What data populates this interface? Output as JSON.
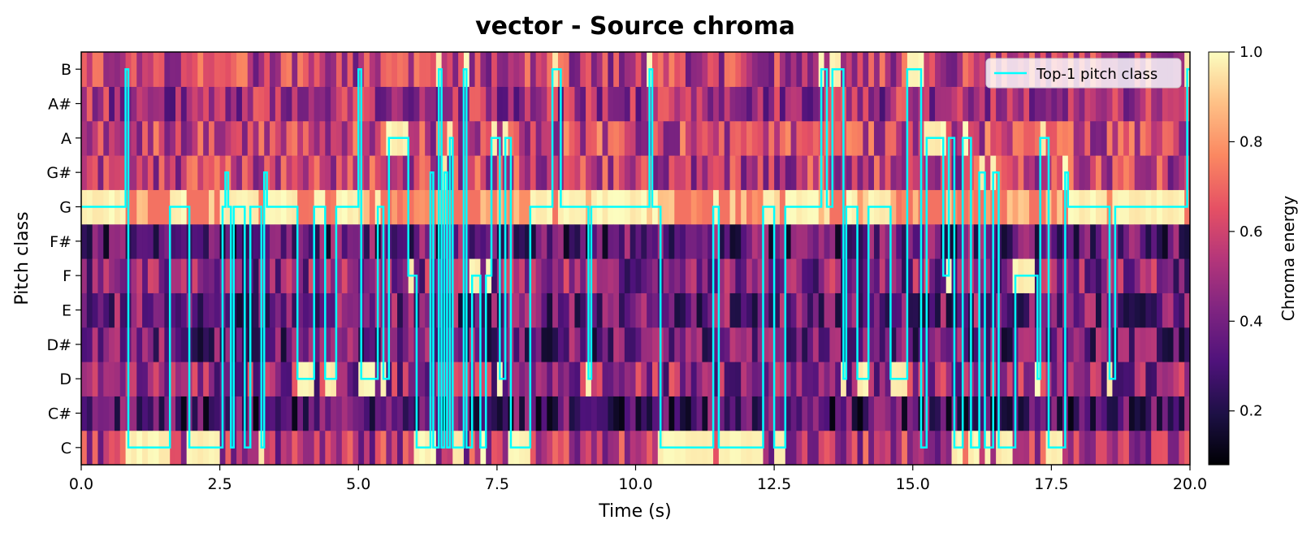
{
  "chart_data": {
    "type": "heatmap",
    "title": "vector - Source chroma",
    "xlabel": "Time (s)",
    "ylabel": "Pitch class",
    "xlim": [
      0,
      20
    ],
    "x_ticks": [
      0,
      2.5,
      5,
      7.5,
      10,
      12.5,
      15,
      17.5,
      20
    ],
    "x_tick_labels": [
      "0.0",
      "2.5",
      "5.0",
      "7.5",
      "10.0",
      "12.5",
      "15.0",
      "17.5",
      "20.0"
    ],
    "pitch_classes": [
      "C",
      "C#",
      "D",
      "D#",
      "E",
      "F",
      "F#",
      "G",
      "G#",
      "A",
      "A#",
      "B"
    ],
    "colormap": "magma",
    "colorbar": {
      "label": "Chroma energy",
      "range": [
        0.08,
        1.0
      ],
      "ticks": [
        0.2,
        0.4,
        0.6,
        0.8,
        1.0
      ],
      "tick_labels": [
        "0.2",
        "0.4",
        "0.6",
        "0.8",
        "1.0"
      ]
    },
    "legend": {
      "placement": "top-right",
      "entries": [
        {
          "label": "Top-1 pitch class",
          "color": "#00FFFF"
        }
      ]
    },
    "series": [
      {
        "name": "Top-1 pitch class",
        "color": "#00FFFF",
        "segments": [
          [
            0.0,
            7
          ],
          [
            0.8,
            11
          ],
          [
            0.85,
            0
          ],
          [
            1.6,
            7
          ],
          [
            1.95,
            0
          ],
          [
            2.55,
            7
          ],
          [
            2.6,
            8
          ],
          [
            2.65,
            7
          ],
          [
            2.7,
            0
          ],
          [
            2.75,
            7
          ],
          [
            2.95,
            0
          ],
          [
            3.05,
            7
          ],
          [
            3.25,
            0
          ],
          [
            3.3,
            8
          ],
          [
            3.35,
            7
          ],
          [
            3.9,
            2
          ],
          [
            4.2,
            7
          ],
          [
            4.4,
            2
          ],
          [
            4.6,
            7
          ],
          [
            5.0,
            11
          ],
          [
            5.05,
            2
          ],
          [
            5.35,
            7
          ],
          [
            5.45,
            2
          ],
          [
            5.55,
            9
          ],
          [
            5.9,
            5
          ],
          [
            6.05,
            0
          ],
          [
            6.3,
            8
          ],
          [
            6.35,
            0
          ],
          [
            6.45,
            11
          ],
          [
            6.5,
            0
          ],
          [
            6.55,
            8
          ],
          [
            6.6,
            0
          ],
          [
            6.65,
            9
          ],
          [
            6.7,
            0
          ],
          [
            6.9,
            11
          ],
          [
            6.95,
            0
          ],
          [
            7.05,
            5
          ],
          [
            7.2,
            0
          ],
          [
            7.3,
            5
          ],
          [
            7.4,
            9
          ],
          [
            7.55,
            2
          ],
          [
            7.65,
            9
          ],
          [
            7.75,
            0
          ],
          [
            8.1,
            7
          ],
          [
            8.5,
            11
          ],
          [
            8.65,
            7
          ],
          [
            9.15,
            2
          ],
          [
            9.2,
            7
          ],
          [
            10.25,
            11
          ],
          [
            10.3,
            7
          ],
          [
            10.45,
            0
          ],
          [
            11.4,
            7
          ],
          [
            11.5,
            0
          ],
          [
            12.3,
            7
          ],
          [
            12.5,
            0
          ],
          [
            12.7,
            7
          ],
          [
            13.35,
            11
          ],
          [
            13.45,
            7
          ],
          [
            13.55,
            11
          ],
          [
            13.75,
            2
          ],
          [
            13.8,
            7
          ],
          [
            14.0,
            2
          ],
          [
            14.2,
            7
          ],
          [
            14.6,
            2
          ],
          [
            14.9,
            11
          ],
          [
            15.15,
            0
          ],
          [
            15.25,
            9
          ],
          [
            15.55,
            5
          ],
          [
            15.65,
            9
          ],
          [
            15.75,
            0
          ],
          [
            15.9,
            9
          ],
          [
            16.05,
            0
          ],
          [
            16.2,
            8
          ],
          [
            16.3,
            0
          ],
          [
            16.45,
            8
          ],
          [
            16.55,
            0
          ],
          [
            16.85,
            5
          ],
          [
            17.25,
            2
          ],
          [
            17.3,
            9
          ],
          [
            17.45,
            0
          ],
          [
            17.75,
            8
          ],
          [
            17.8,
            7
          ],
          [
            18.55,
            2
          ],
          [
            18.65,
            7
          ],
          [
            19.95,
            11
          ],
          [
            20.0,
            11
          ]
        ]
      }
    ]
  }
}
